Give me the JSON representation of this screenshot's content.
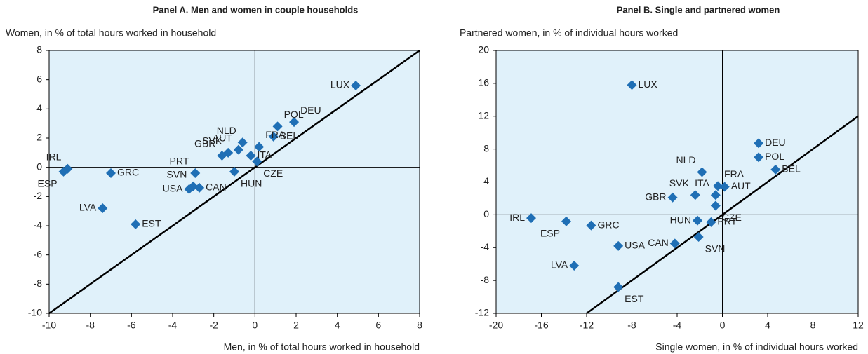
{
  "chart_data": [
    {
      "type": "scatter",
      "title": "Panel A. Men and women in couple households",
      "ylabel": "Women, in % of total hours worked in household",
      "xlabel": "Men, in % of total hours worked in household",
      "color": "#1f6fb5",
      "xlim": [
        -10,
        8
      ],
      "xticks": [
        -10,
        -8,
        -6,
        -4,
        -2,
        0,
        2,
        4,
        6,
        8
      ],
      "ylim": [
        -10,
        8
      ],
      "yticks": [
        -10,
        -8,
        -6,
        -4,
        -2,
        0,
        2,
        4,
        6,
        8
      ],
      "labels": [
        "LUX",
        "DEU",
        "POL",
        "BEL",
        "NLD",
        "FRA",
        "AUT",
        "SVK",
        "GBR",
        "ITA",
        "CZE",
        "HUN",
        "PRT",
        "SVN",
        "CAN",
        "USA",
        "GRC",
        "IRL",
        "ESP",
        "LVA",
        "EST"
      ],
      "x": [
        4.9,
        1.9,
        1.1,
        0.9,
        -0.6,
        0.2,
        -0.8,
        -1.3,
        -1.6,
        -0.2,
        0.1,
        -1.0,
        -2.9,
        -3.0,
        -2.7,
        -3.2,
        -7.0,
        -9.1,
        -9.3,
        -7.4,
        -5.8
      ],
      "y": [
        5.6,
        3.1,
        2.8,
        2.1,
        1.7,
        1.4,
        1.2,
        1.0,
        0.8,
        0.8,
        0.4,
        -0.3,
        -0.4,
        -1.3,
        -1.4,
        -1.5,
        -0.4,
        -0.1,
        -0.3,
        -2.8,
        -3.9
      ]
    },
    {
      "type": "scatter",
      "title": "Panel B. Single and partnered women",
      "ylabel": "Partnered women, in % of individual hours worked",
      "xlabel": "Single women, in % of individual hours worked",
      "color": "#1f6fb5",
      "xlim": [
        -20,
        12
      ],
      "xticks": [
        -20,
        -16,
        -12,
        -8,
        -4,
        0,
        4,
        8,
        12
      ],
      "ylim": [
        -12,
        20
      ],
      "yticks": [
        -12,
        -8,
        -4,
        0,
        4,
        8,
        12,
        16,
        20
      ],
      "labels": [
        "LUX",
        "DEU",
        "POL",
        "BEL",
        "NLD",
        "FRA",
        "AUT",
        "ITA",
        "SVK",
        "GBR",
        "CZE",
        "HUN",
        "PRT",
        "SVN",
        "CAN",
        "USA",
        "GRC",
        "ESP",
        "IRL",
        "LVA",
        "EST"
      ],
      "x": [
        -8.0,
        3.2,
        3.2,
        4.7,
        -1.8,
        -0.4,
        0.2,
        -0.6,
        -2.4,
        -4.4,
        -0.6,
        -2.2,
        -1.0,
        -2.1,
        -4.2,
        -9.2,
        -11.6,
        -13.8,
        -16.9,
        -13.1,
        -9.2
      ],
      "y": [
        15.8,
        8.7,
        7.0,
        5.5,
        5.2,
        3.5,
        3.4,
        2.4,
        2.4,
        2.1,
        1.1,
        -0.7,
        -0.9,
        -2.7,
        -3.5,
        -3.8,
        -1.3,
        -0.8,
        -0.4,
        -6.2,
        -8.8
      ]
    }
  ]
}
